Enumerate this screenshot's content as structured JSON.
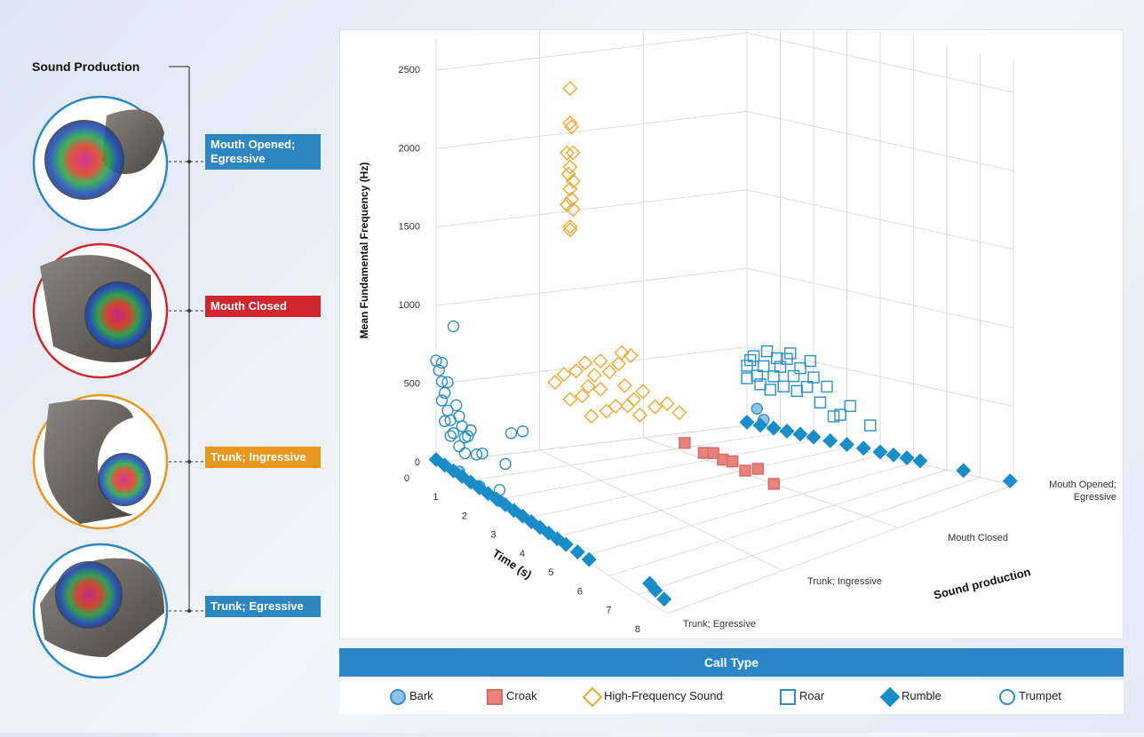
{
  "sound_production_panel": {
    "title": "Sound Production",
    "labels": [
      {
        "text": "Mouth Opened; Egressive",
        "color": "#2e86c1"
      },
      {
        "text": "Mouth Closed",
        "color": "#d0262e"
      },
      {
        "text": "Trunk; Ingressive",
        "color": "#e8961e"
      },
      {
        "text": "Trunk; Egressive",
        "color": "#2e86c1"
      }
    ]
  },
  "chart_data": {
    "type": "scatter3d",
    "zlabel": "Mean Fundamental Frequency (Hz)",
    "xlabel": "Time (s)",
    "ylabel": "Sound production",
    "legend_title": "Call Type",
    "xlim": [
      0,
      8
    ],
    "xticks": [
      0,
      1,
      2,
      3,
      4,
      5,
      6,
      7,
      8
    ],
    "zlim": [
      0,
      2700
    ],
    "zticks": [
      0,
      500,
      1000,
      1500,
      2000,
      2500
    ],
    "categories": [
      "Trunk; Egressive",
      "Trunk; Ingressive",
      "Mouth Closed",
      "Mouth Opened; Egressive"
    ],
    "grid": true,
    "series": [
      {
        "name": "Bark",
        "marker": "circle",
        "filled": true,
        "color": "#3a8fc9",
        "fill": "#8ec3e6",
        "production": [
          "Trunk; Egressive",
          "Trunk; Egressive",
          "Trunk; Egressive",
          "Mouth Opened; Egressive",
          "Mouth Opened; Egressive"
        ],
        "time": [
          0.8,
          1.5,
          2.2,
          0.3,
          0.5
        ],
        "frequency": [
          40,
          30,
          20,
          120,
          60
        ]
      },
      {
        "name": "Croak",
        "marker": "square",
        "filled": true,
        "color": "#d86a63",
        "fill": "#e8827c",
        "production": "Mouth Closed",
        "time": [
          1.3,
          1.9,
          2.2,
          2.5,
          2.8,
          3.2,
          3.6,
          4.1
        ],
        "frequency": [
          60,
          40,
          60,
          40,
          50,
          20,
          60,
          0
        ]
      },
      {
        "name": "High-Frequency Sound",
        "marker": "diamond",
        "filled": false,
        "color": "#f0a830",
        "production": "Trunk; Ingressive",
        "time": [
          1.0,
          1.0,
          1.05,
          0.9,
          1.1,
          1.0,
          0.95,
          1.1,
          1.0,
          1.05,
          0.9,
          1.1,
          1.0,
          1.0,
          0.5,
          0.8,
          1.2,
          1.5,
          1.8,
          2.0,
          2.3,
          2.6,
          2.8,
          3.1,
          3.4,
          3.8,
          4.2,
          4.6,
          1.0,
          1.4,
          2.2,
          2.5,
          1.7,
          2.9,
          3.3,
          1.6,
          2.0,
          2.7,
          3.0
        ],
        "frequency": [
          2400,
          2180,
          2160,
          1980,
          2000,
          1900,
          1850,
          1820,
          1760,
          1700,
          1650,
          1640,
          1520,
          1500,
          480,
          560,
          620,
          700,
          650,
          580,
          720,
          800,
          680,
          620,
          700,
          640,
          700,
          680,
          420,
          480,
          460,
          520,
          380,
          560,
          540,
          560,
          760,
          880,
          890
        ]
      },
      {
        "name": "Roar",
        "marker": "square",
        "filled": false,
        "color": "#2a8fc4",
        "production": "Mouth Opened; Egressive",
        "time": [
          0,
          0,
          0.2,
          0.3,
          0.5,
          0.6,
          0.8,
          1.0,
          1.2,
          1.1,
          1.4,
          1.6,
          1.8,
          2.0,
          2.2,
          2.4,
          0.4,
          0.7,
          0.9,
          1.5,
          1.3,
          2.6,
          2.8,
          3.1,
          3.7,
          1.9,
          0.1
        ],
        "frequency": [
          300,
          380,
          450,
          330,
          400,
          500,
          350,
          420,
          480,
          300,
          380,
          440,
          330,
          400,
          250,
          360,
          280,
          260,
          470,
          290,
          520,
          180,
          200,
          270,
          175,
          500,
          420
        ]
      },
      {
        "name": "Rumble",
        "marker": "diamond",
        "filled": true,
        "color": "#1a8cc8",
        "fill": "#1a8cc8",
        "production": [
          "Trunk; Egressive",
          "Trunk; Egressive",
          "Trunk; Egressive",
          "Trunk; Egressive",
          "Trunk; Egressive",
          "Trunk; Egressive",
          "Trunk; Egressive",
          "Trunk; Egressive",
          "Trunk; Egressive",
          "Trunk; Egressive",
          "Trunk; Egressive",
          "Trunk; Egressive",
          "Trunk; Egressive",
          "Trunk; Egressive",
          "Trunk; Egressive",
          "Trunk; Egressive",
          "Trunk; Egressive",
          "Trunk; Egressive",
          "Trunk; Egressive",
          "Trunk; Egressive",
          "Trunk; Egressive",
          "Mouth Opened; Egressive",
          "Mouth Opened; Egressive",
          "Mouth Opened; Egressive",
          "Mouth Opened; Egressive",
          "Mouth Opened; Egressive",
          "Mouth Opened; Egressive",
          "Mouth Opened; Egressive",
          "Mouth Opened; Egressive",
          "Mouth Opened; Egressive",
          "Mouth Opened; Egressive",
          "Mouth Opened; Egressive",
          "Mouth Opened; Egressive",
          "Mouth Opened; Egressive",
          "Mouth Opened; Egressive",
          "Mouth Opened; Egressive"
        ],
        "time": [
          0,
          0.3,
          0.6,
          0.9,
          1.2,
          1.5,
          1.8,
          2.1,
          2.4,
          2.7,
          3.0,
          3.3,
          3.6,
          3.9,
          4.2,
          4.5,
          4.9,
          5.3,
          7.4,
          7.6,
          7.9,
          0,
          0.4,
          0.8,
          1.2,
          1.6,
          2.0,
          2.5,
          3.0,
          3.5,
          4.0,
          4.4,
          4.8,
          5.2,
          6.5,
          7.9
        ],
        "frequency": [
          20,
          20,
          20,
          20,
          20,
          20,
          20,
          20,
          20,
          20,
          20,
          20,
          20,
          20,
          20,
          20,
          20,
          20,
          120,
          100,
          80,
          20,
          20,
          20,
          20,
          20,
          20,
          20,
          20,
          20,
          20,
          20,
          20,
          20,
          20,
          20
        ]
      },
      {
        "name": "Trumpet",
        "marker": "circle",
        "filled": false,
        "color": "#2a8fc4",
        "production": "Trunk; Egressive",
        "time": [
          0,
          0.1,
          0.2,
          0.3,
          0.2,
          0.4,
          0.5,
          0.3,
          0.6,
          0.7,
          0.8,
          0.5,
          0.9,
          1.0,
          1.1,
          0.6,
          0.2,
          0.4,
          1.2,
          1.4,
          1.6,
          2.2,
          2.6,
          3.0,
          2.4,
          0.8,
          1.0
        ],
        "frequency": [
          650,
          600,
          540,
          480,
          420,
          380,
          330,
          300,
          260,
          450,
          390,
          230,
          340,
          280,
          300,
          940,
          660,
          560,
          350,
          220,
          250,
          90,
          500,
          560,
          280,
          200,
          180
        ]
      }
    ]
  }
}
